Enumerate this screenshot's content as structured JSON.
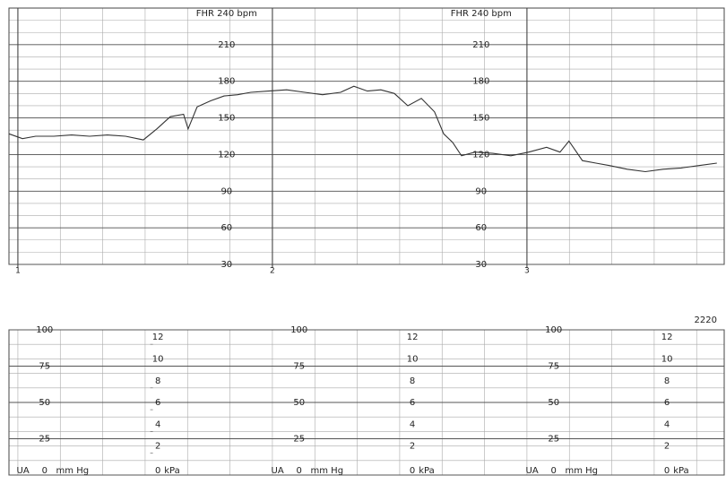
{
  "chart_data": [
    {
      "type": "line",
      "title": "FHR 240 bpm",
      "x": [
        0.965,
        1.018,
        1.07,
        1.141,
        1.211,
        1.282,
        1.352,
        1.423,
        1.493,
        1.546,
        1.599,
        1.651,
        1.669,
        1.704,
        1.757,
        1.81,
        1.863,
        1.915,
        1.986,
        2.056,
        2.127,
        2.197,
        2.268,
        2.32,
        2.373,
        2.426,
        2.479,
        2.532,
        2.585,
        2.637,
        2.673,
        2.708,
        2.743,
        2.796,
        2.866,
        2.937,
        3.007,
        3.077,
        3.13,
        3.165,
        3.218,
        3.271,
        3.324,
        3.394,
        3.465,
        3.535,
        3.606,
        3.676,
        3.746
      ],
      "series": [
        {
          "color": "#333333",
          "values": [
            137,
            133,
            135,
            135,
            136,
            135,
            136,
            135,
            132,
            141,
            151,
            153,
            141,
            159,
            164,
            168,
            169,
            171,
            172,
            173,
            171,
            169,
            171,
            176,
            172,
            173,
            170,
            160,
            166,
            155,
            137,
            130,
            119,
            122,
            121,
            119,
            122,
            126,
            122,
            131,
            115,
            113,
            111,
            108,
            106,
            108,
            109,
            111,
            113
          ]
        }
      ],
      "xlim": [
        0.965,
        3.775
      ],
      "xticks": [
        1,
        2,
        3
      ],
      "ylim": [
        30,
        240
      ],
      "yticks": [
        30,
        60,
        90,
        120,
        150,
        180,
        210
      ],
      "grid": true
    },
    {
      "type": "line",
      "title": "UA",
      "y_unit": "mm Hg",
      "y2_unit": "kPa",
      "annotation": "2220",
      "ylim": [
        0,
        100
      ],
      "yticks": [
        0,
        25,
        50,
        75,
        100
      ],
      "y2lim": [
        0,
        13.33
      ],
      "y2ticks": [
        0,
        2,
        4,
        6,
        8,
        10,
        12
      ],
      "grid": true
    }
  ]
}
